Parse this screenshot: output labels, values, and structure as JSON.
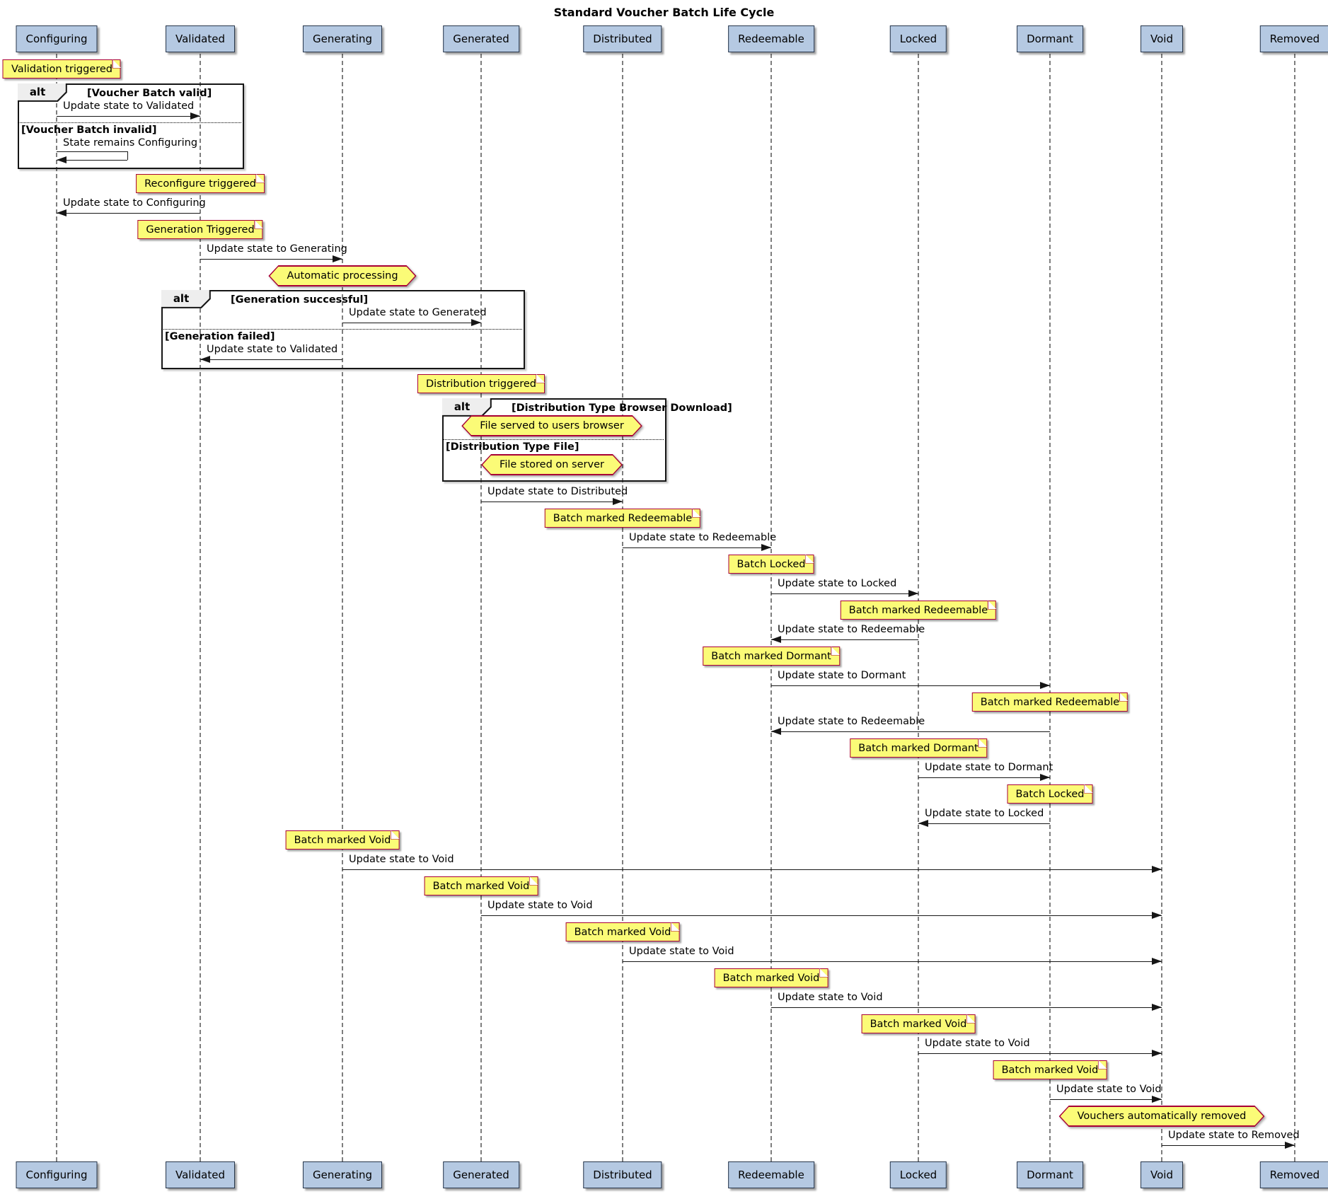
{
  "title": "Standard Voucher Batch Life Cycle",
  "participants": [
    "Configuring",
    "Validated",
    "Generating",
    "Generated",
    "Distributed",
    "Redeemable",
    "Locked",
    "Dormant",
    "Void",
    "Removed"
  ],
  "colors": {
    "note_fill": "#FBFB77",
    "note_border": "#A80036",
    "participant_fill": "#B5C9E2",
    "participant_border": "#26354A",
    "frame_border": "#151515",
    "frame_label_fill": "#EEEEEE",
    "lifeline": "#7E7E7E",
    "arrow": "#161616",
    "background": "#FFFFFF"
  },
  "events": [
    {
      "kind": "note",
      "over": "Configuring",
      "text": "Validation triggered"
    },
    {
      "kind": "frame_open",
      "label": "alt",
      "condition": "[Voucher Batch valid]",
      "span": [
        "Configuring",
        "Validated"
      ]
    },
    {
      "kind": "message",
      "from": "Configuring",
      "to": "Validated",
      "text": "Update state to Validated"
    },
    {
      "kind": "divider",
      "condition": "[Voucher Batch invalid]"
    },
    {
      "kind": "self",
      "on": "Configuring",
      "text": "State remains Configuring"
    },
    {
      "kind": "frame_close"
    },
    {
      "kind": "note",
      "over": "Validated",
      "text": "Reconfigure triggered"
    },
    {
      "kind": "message",
      "from": "Validated",
      "to": "Configuring",
      "text": "Update state to Configuring"
    },
    {
      "kind": "note",
      "over": "Validated",
      "text": "Generation Triggered"
    },
    {
      "kind": "message",
      "from": "Validated",
      "to": "Generating",
      "text": "Update state to Generating"
    },
    {
      "kind": "hexagon",
      "over": "Generating",
      "text": "Automatic processing"
    },
    {
      "kind": "frame_open",
      "label": "alt",
      "condition": "[Generation successful]",
      "span": [
        "Validated",
        "Generated"
      ]
    },
    {
      "kind": "message",
      "from": "Generating",
      "to": "Generated",
      "text": "Update state to Generated"
    },
    {
      "kind": "divider",
      "condition": "[Generation failed]"
    },
    {
      "kind": "message",
      "from": "Generating",
      "to": "Validated",
      "text": "Update state to Validated"
    },
    {
      "kind": "frame_close"
    },
    {
      "kind": "note",
      "over": "Generated",
      "text": "Distribution triggered"
    },
    {
      "kind": "frame_open",
      "label": "alt",
      "condition": "[Distribution Type Browser Download]",
      "span": [
        "Generated",
        "Distributed"
      ]
    },
    {
      "kind": "hexagon",
      "between": [
        "Generated",
        "Distributed"
      ],
      "text": "File served to users browser"
    },
    {
      "kind": "divider",
      "condition": "[Distribution Type File]"
    },
    {
      "kind": "hexagon",
      "between": [
        "Generated",
        "Distributed"
      ],
      "text": "File stored on server"
    },
    {
      "kind": "frame_close"
    },
    {
      "kind": "message",
      "from": "Generated",
      "to": "Distributed",
      "text": "Update state to Distributed"
    },
    {
      "kind": "note",
      "over": "Distributed",
      "text": "Batch marked Redeemable"
    },
    {
      "kind": "message",
      "from": "Distributed",
      "to": "Redeemable",
      "text": "Update state to Redeemable"
    },
    {
      "kind": "note",
      "over": "Redeemable",
      "text": "Batch Locked"
    },
    {
      "kind": "message",
      "from": "Redeemable",
      "to": "Locked",
      "text": "Update state to Locked"
    },
    {
      "kind": "note",
      "over": "Locked",
      "text": "Batch marked Redeemable"
    },
    {
      "kind": "message",
      "from": "Locked",
      "to": "Redeemable",
      "text": "Update state to Redeemable"
    },
    {
      "kind": "note",
      "over": "Redeemable",
      "text": "Batch marked Dormant"
    },
    {
      "kind": "message",
      "from": "Redeemable",
      "to": "Dormant",
      "text": "Update state to Dormant"
    },
    {
      "kind": "note",
      "over": "Dormant",
      "text": "Batch marked Redeemable"
    },
    {
      "kind": "message",
      "from": "Dormant",
      "to": "Redeemable",
      "text": "Update state to Redeemable"
    },
    {
      "kind": "note",
      "over": "Locked",
      "text": "Batch marked Dormant"
    },
    {
      "kind": "message",
      "from": "Locked",
      "to": "Dormant",
      "text": "Update state to Dormant"
    },
    {
      "kind": "note",
      "over": "Dormant",
      "text": "Batch Locked"
    },
    {
      "kind": "message",
      "from": "Dormant",
      "to": "Locked",
      "text": "Update state to Locked"
    },
    {
      "kind": "note",
      "over": "Generating",
      "text": "Batch marked Void"
    },
    {
      "kind": "message",
      "from": "Generating",
      "to": "Void",
      "text": "Update state to Void"
    },
    {
      "kind": "note",
      "over": "Generated",
      "text": "Batch marked Void"
    },
    {
      "kind": "message",
      "from": "Generated",
      "to": "Void",
      "text": "Update state to Void"
    },
    {
      "kind": "note",
      "over": "Distributed",
      "text": "Batch marked Void"
    },
    {
      "kind": "message",
      "from": "Distributed",
      "to": "Void",
      "text": "Update state to Void"
    },
    {
      "kind": "note",
      "over": "Redeemable",
      "text": "Batch marked Void"
    },
    {
      "kind": "message",
      "from": "Redeemable",
      "to": "Void",
      "text": "Update state to Void"
    },
    {
      "kind": "note",
      "over": "Locked",
      "text": "Batch marked Void"
    },
    {
      "kind": "message",
      "from": "Locked",
      "to": "Void",
      "text": "Update state to Void"
    },
    {
      "kind": "note",
      "over": "Dormant",
      "text": "Batch marked Void"
    },
    {
      "kind": "message",
      "from": "Dormant",
      "to": "Void",
      "text": "Update state to Void"
    },
    {
      "kind": "hexagon",
      "over": "Void",
      "text": "Vouchers automatically removed"
    },
    {
      "kind": "message",
      "from": "Void",
      "to": "Removed",
      "text": "Update state to Removed"
    }
  ]
}
